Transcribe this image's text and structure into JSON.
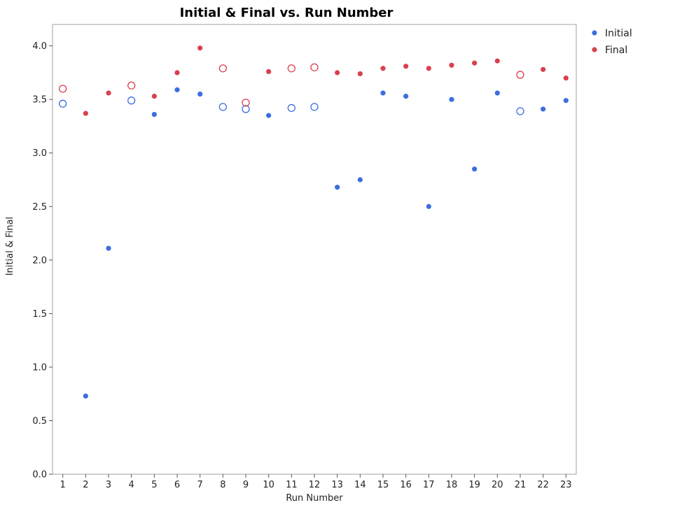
{
  "chart_data": {
    "type": "scatter",
    "title": "Initial & Final vs. Run Number",
    "xlabel": "Run Number",
    "ylabel": "Initial & Final",
    "x": [
      1,
      2,
      3,
      4,
      5,
      6,
      7,
      8,
      9,
      10,
      11,
      12,
      13,
      14,
      15,
      16,
      17,
      18,
      19,
      20,
      21,
      22,
      23
    ],
    "xlim": [
      0.55,
      23.45
    ],
    "ylim": [
      0,
      4.2
    ],
    "yticks": [
      0.0,
      0.5,
      1.0,
      1.5,
      2.0,
      2.5,
      3.0,
      3.5,
      4.0
    ],
    "ytick_labels": [
      "0.0",
      "0.5",
      "1.0",
      "1.5",
      "2.0",
      "2.5",
      "3.0",
      "3.5",
      "4.0"
    ],
    "xtick_labels": [
      "1",
      "2",
      "3",
      "4",
      "5",
      "6",
      "7",
      "8",
      "9",
      "10",
      "11",
      "12",
      "13",
      "14",
      "15",
      "16",
      "17",
      "18",
      "19",
      "20",
      "21",
      "22",
      "23"
    ],
    "grid": false,
    "legend_position": "top-right outside",
    "series": [
      {
        "name": "Initial",
        "color": "#3b6ee0",
        "values": [
          3.46,
          0.73,
          2.11,
          3.49,
          3.36,
          3.59,
          3.55,
          3.43,
          3.41,
          3.35,
          3.42,
          3.43,
          2.68,
          2.75,
          3.56,
          3.53,
          2.5,
          3.5,
          2.85,
          3.56,
          3.39,
          3.41,
          3.49
        ],
        "hollow": [
          true,
          false,
          false,
          true,
          false,
          false,
          false,
          true,
          true,
          false,
          true,
          true,
          false,
          false,
          false,
          false,
          false,
          false,
          false,
          false,
          true,
          false,
          false
        ]
      },
      {
        "name": "Final",
        "color": "#d9404f",
        "values": [
          3.6,
          3.37,
          3.56,
          3.63,
          3.53,
          3.75,
          3.98,
          3.79,
          3.47,
          3.76,
          3.79,
          3.8,
          3.75,
          3.74,
          3.79,
          3.81,
          3.79,
          3.82,
          3.84,
          3.86,
          3.73,
          3.78,
          3.7
        ],
        "hollow": [
          true,
          false,
          false,
          true,
          false,
          false,
          false,
          true,
          true,
          false,
          true,
          true,
          false,
          false,
          false,
          false,
          false,
          false,
          false,
          false,
          true,
          false,
          false
        ]
      }
    ]
  }
}
